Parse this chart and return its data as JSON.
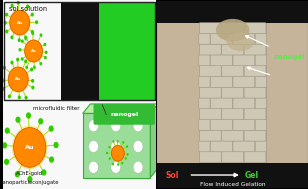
{
  "overall_bg": "#000000",
  "left_panel": {
    "top_label": "sol solution",
    "filter_label": "microfluidic filter",
    "nanogel_label": "nanogel",
    "nanoparticle_label1": "AChE-gold",
    "nanoparticle_label2": "nanoparticleconjugate",
    "au_color": "#ff8800",
    "au_border": "#cc5500",
    "enzyme_spike_color": "#aadd00",
    "enzyme_dot_color": "#22bb00",
    "enzyme_dot2_color": "#55dd22",
    "sol_bg": "#f8f8f8",
    "filter_black": "#111111",
    "filter_green": "#22cc22",
    "nanogel_box_color": "#44bb44",
    "nanogel_text_color": "#ffffff",
    "cube_face_color": "#99dd99",
    "cube_edge_color": "#33aa33",
    "cube_hole_color": "#ffffff",
    "panel_border": "#222222"
  },
  "right_panel": {
    "bg_color": "#c5b49a",
    "filter_bg": "#bdb09a",
    "brick_face": "#cfc8b5",
    "brick_edge": "#a09888",
    "nanogel_label": "nanogel",
    "nanogel_color": "#55ee44",
    "sol_label": "Sol",
    "sol_color": "#ff4433",
    "gel_label": "Gel",
    "gel_color": "#44cc33",
    "flow_label": "Flow Induced Gelation",
    "bot_bar_color": "#111111",
    "arrow_color": "#ffffff",
    "nanogel_blob_color": "#c0a878",
    "top_bar_color": "#111111"
  }
}
